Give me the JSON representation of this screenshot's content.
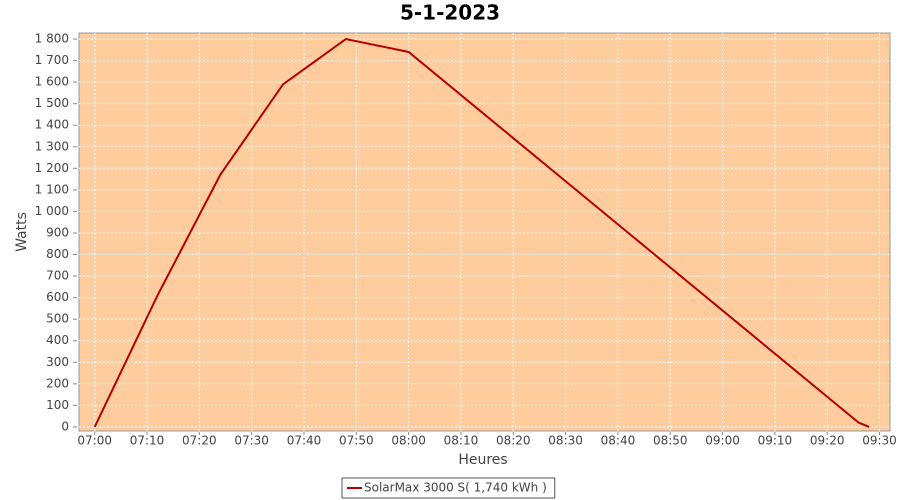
{
  "chart_data": {
    "type": "line",
    "title": "5-1-2023",
    "x_label": "Heures",
    "y_label": "Watts",
    "x": [
      "07:00",
      "07:12",
      "07:24",
      "07:36",
      "07:48",
      "08:00",
      "09:26",
      "09:28"
    ],
    "series": [
      {
        "name": "SolarMax 3000 S( 1,740 kWh )",
        "color": "#b50000",
        "values": [
          0,
          610,
          1170,
          1590,
          1800,
          1740,
          20,
          0
        ]
      }
    ],
    "xlim": [
      "06:57",
      "09:32"
    ],
    "xticks": [
      "07:00",
      "07:10",
      "07:20",
      "07:30",
      "07:40",
      "07:50",
      "08:00",
      "08:10",
      "08:20",
      "08:30",
      "08:40",
      "08:50",
      "09:00",
      "09:10",
      "09:20",
      "09:30"
    ],
    "ylim": [
      -19,
      1828
    ],
    "yticks": [
      0,
      100,
      200,
      300,
      400,
      500,
      600,
      700,
      800,
      900,
      {
        "value": 1000,
        "label": "1 000"
      },
      {
        "value": 1100,
        "label": "1 100"
      },
      {
        "value": 1200,
        "label": "1 200"
      },
      {
        "value": 1300,
        "label": "1 300"
      },
      {
        "value": 1400,
        "label": "1 400"
      },
      {
        "value": 1500,
        "label": "1 500"
      },
      {
        "value": 1600,
        "label": "1 600"
      },
      {
        "value": 1700,
        "label": "1 700"
      },
      {
        "value": 1800,
        "label": "1 800"
      }
    ],
    "grid": true,
    "background": "#ffcc9e",
    "legend": "bottom"
  }
}
